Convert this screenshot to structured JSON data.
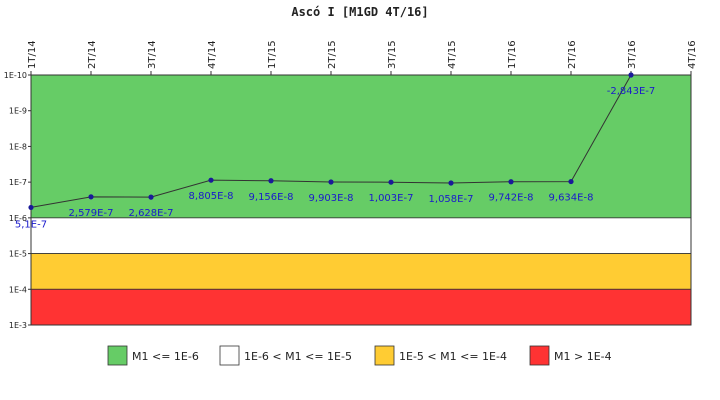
{
  "chart_data": {
    "type": "line",
    "title": "Ascó I [M1GD 4T/16]",
    "xlabel": "",
    "ylabel": "",
    "y_scale": "log",
    "y_inverted": true,
    "ylim": [
      1e-10,
      0.001
    ],
    "y_tick_labels": [
      "1E-10",
      "1E-9",
      "1E-8",
      "1E-7",
      "1E-6",
      "1E-5",
      "1E-4",
      "1E-3"
    ],
    "x_axis_position": "top",
    "grid": false,
    "categories": [
      "1T/14",
      "2T/14",
      "3T/14",
      "4T/14",
      "1T/15",
      "2T/15",
      "3T/15",
      "4T/15",
      "1T/16",
      "2T/16",
      "3T/16",
      "4T/16"
    ],
    "series": [
      {
        "color": "#1a1a99",
        "values": [
          5.1e-07,
          2.579e-07,
          2.628e-07,
          8.805e-08,
          9.156e-08,
          9.903e-08,
          1.003e-07,
          1.058e-07,
          9.742e-08,
          9.634e-08,
          -2.843e-07,
          null
        ],
        "labels": [
          "5,1E-7",
          "2,579E-7",
          "2,628E-7",
          "8,805E-8",
          "9,156E-8",
          "9,903E-8",
          "1,003E-7",
          "1,058E-7",
          "9,742E-8",
          "9,634E-8",
          "-2,843E-7",
          ""
        ]
      }
    ],
    "bands": [
      {
        "from": 1e-10,
        "to": 1e-06,
        "color": "#66cc66",
        "legend": "M1 <= 1E-6"
      },
      {
        "from": 1e-06,
        "to": 1e-05,
        "color": "#ffffff",
        "legend": "1E-6 < M1 <= 1E-5"
      },
      {
        "from": 1e-05,
        "to": 0.0001,
        "color": "#ffcc33",
        "legend": "1E-5 < M1 <= 1E-4"
      },
      {
        "from": 0.0001,
        "to": 0.001,
        "color": "#ff3333",
        "legend": "M1 > 1E-4"
      }
    ],
    "legend_position": "bottom"
  }
}
